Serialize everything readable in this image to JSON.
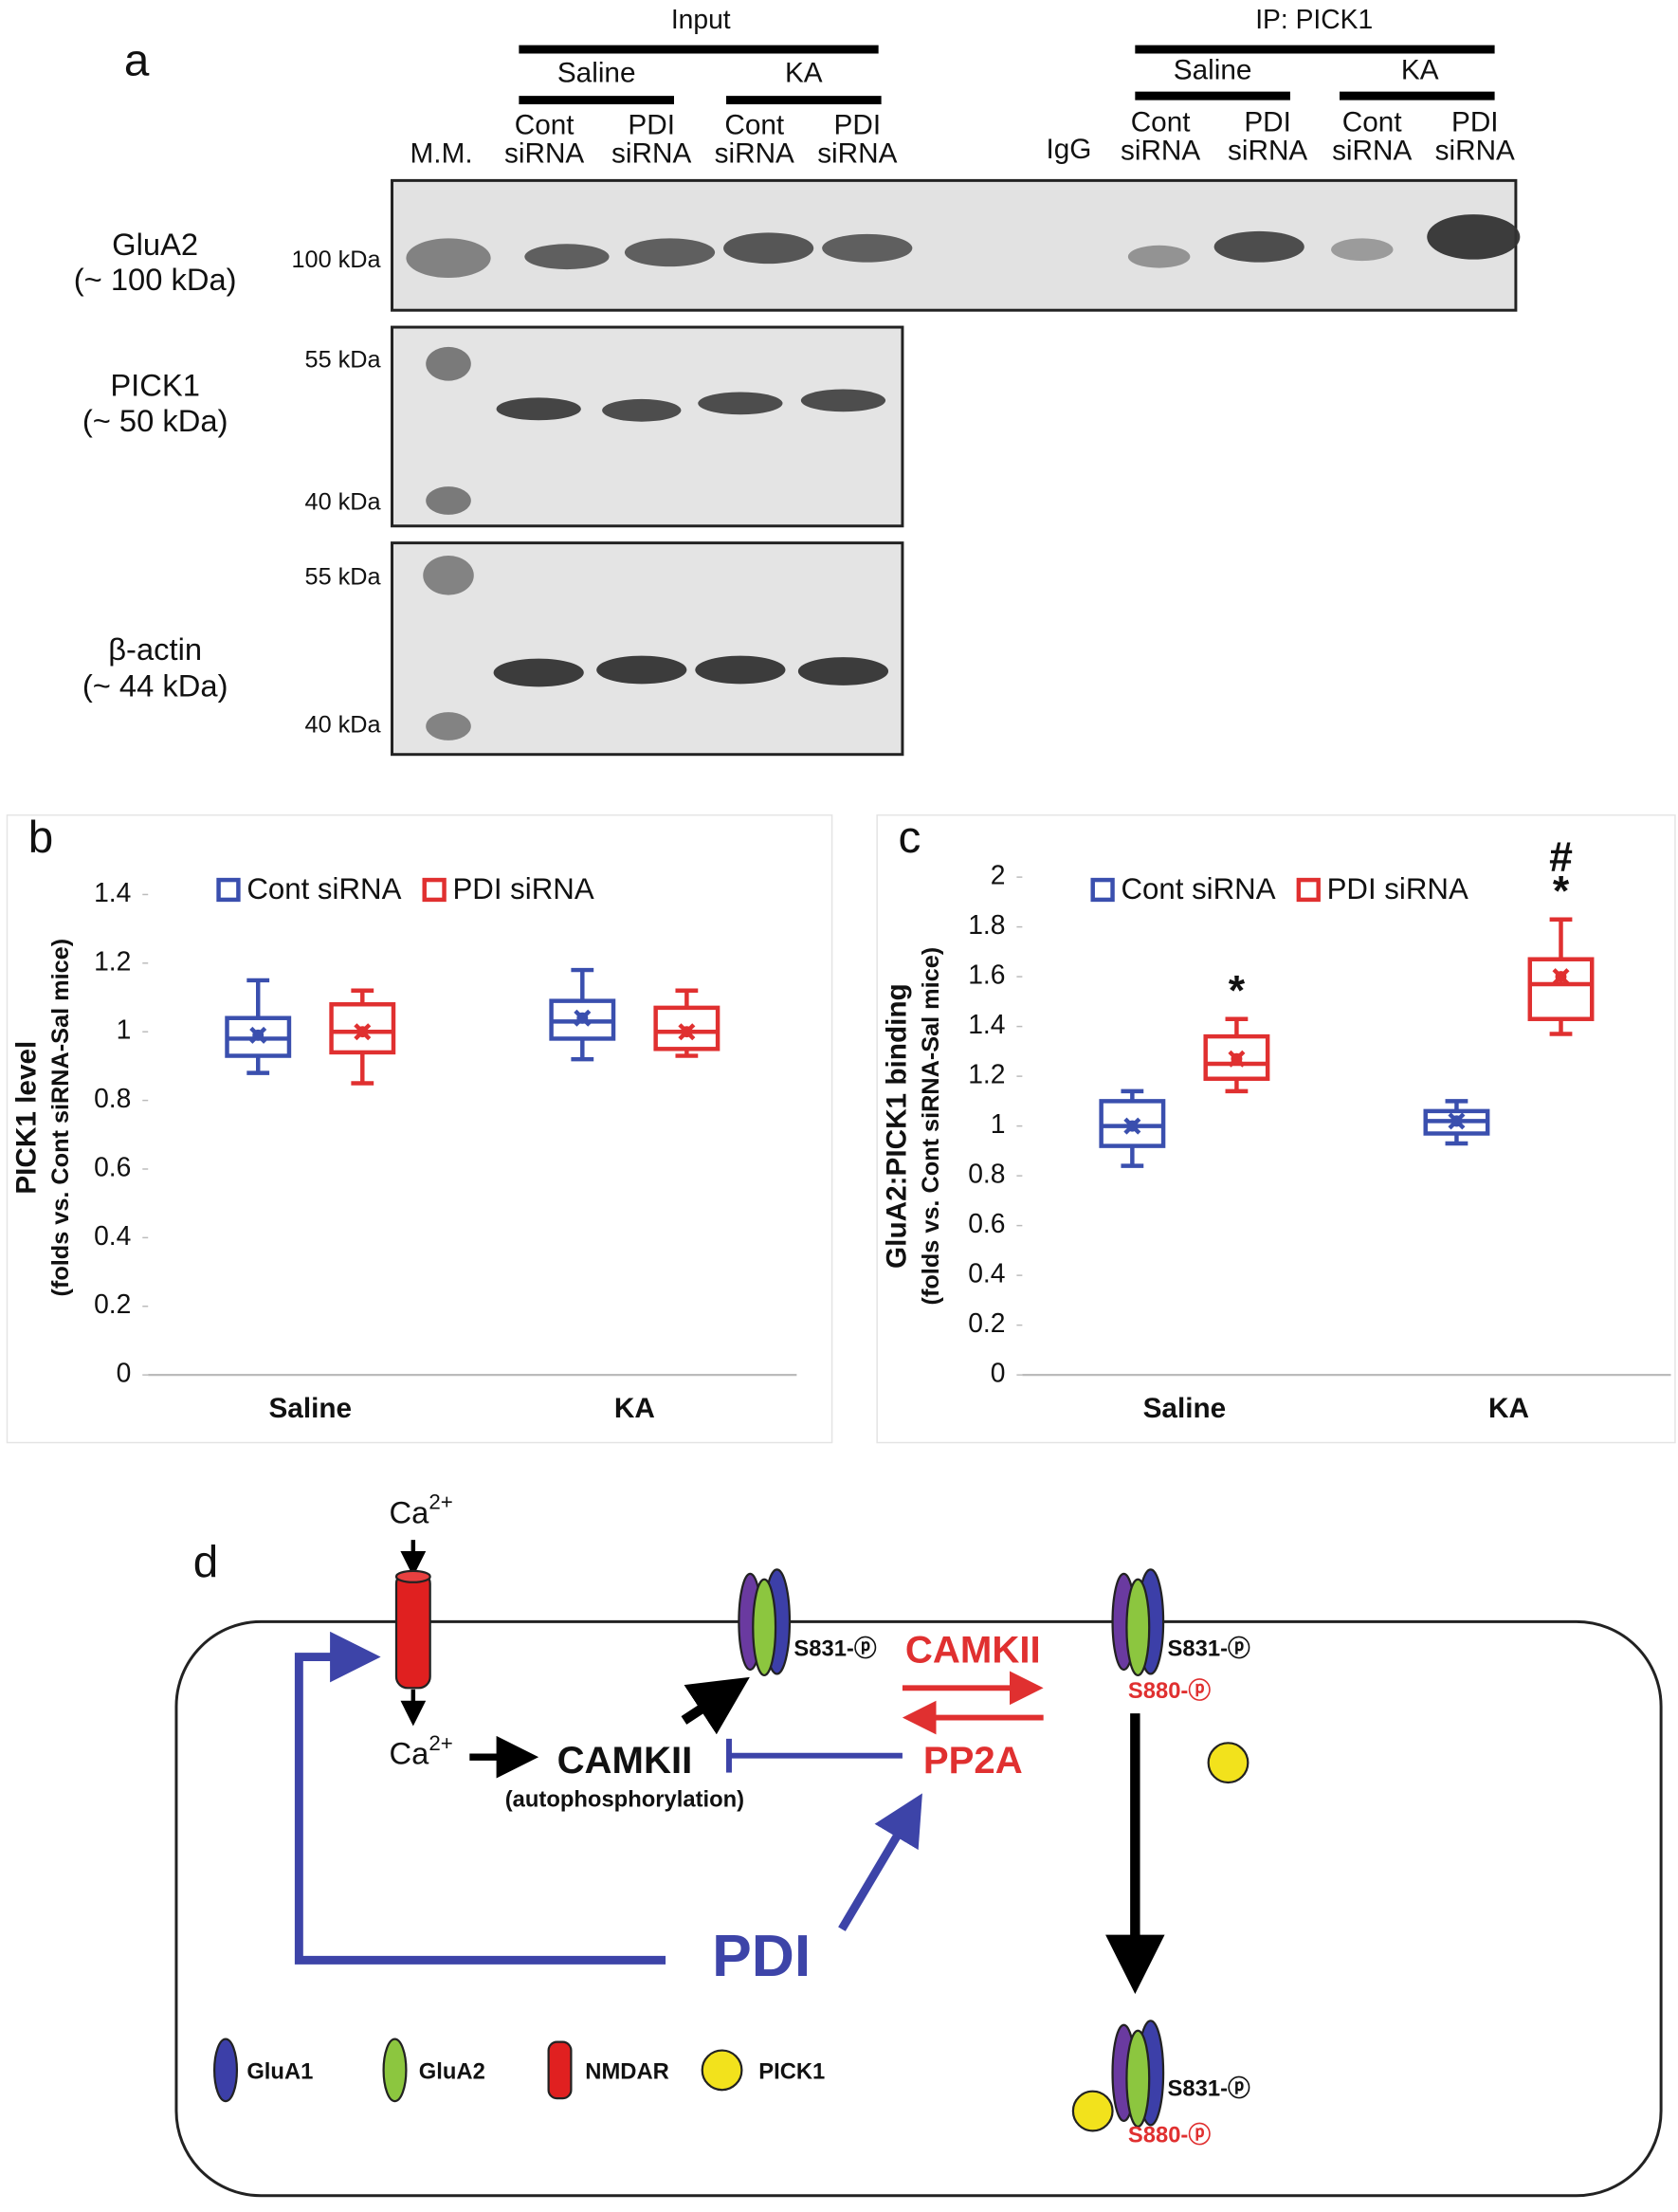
{
  "figure": {
    "panel_a": {
      "letter": "a",
      "input_header": "Input",
      "ip_header": "IP: PICK1",
      "input_groups": [
        "Saline",
        "KA"
      ],
      "ip_groups": [
        "Saline",
        "KA"
      ],
      "marker_lane": "M.M.",
      "igg_lane": "IgG",
      "input_lanes": [
        [
          "Cont",
          "siRNA"
        ],
        [
          "PDI",
          "siRNA"
        ],
        [
          "Cont",
          "siRNA"
        ],
        [
          "PDI",
          "siRNA"
        ]
      ],
      "ip_lanes": [
        [
          "Cont",
          "siRNA"
        ],
        [
          "PDI",
          "siRNA"
        ],
        [
          "Cont",
          "siRNA"
        ],
        [
          "PDI",
          "siRNA"
        ]
      ],
      "blots": [
        {
          "protein": "GluA2",
          "size": "(~ 100 kDa)",
          "markers": [
            "100 kDa"
          ]
        },
        {
          "protein": "PICK1",
          "size": "(~ 50 kDa)",
          "markers": [
            "55 kDa",
            "40 kDa"
          ]
        },
        {
          "protein": "β-actin",
          "size": "(~ 44 kDa)",
          "markers": [
            "55 kDa",
            "40 kDa"
          ]
        }
      ]
    },
    "panel_d": {
      "letter": "d",
      "ca_top": {
        "base": "Ca",
        "charge": "2+"
      },
      "ca_bottom": {
        "base": "Ca",
        "charge": "2+"
      },
      "camkii_auto": "CAMKII",
      "autophosphorylation": "(autophosphorylation)",
      "camkii_forward": "CAMKII",
      "pp2a": "PP2A",
      "pdi": "PDI",
      "site_labels": [
        "S831-ⓟ",
        "S831-ⓟ",
        "S880-ⓟ",
        "S831-ⓟ",
        "S880-ⓟ"
      ],
      "legend": [
        "GluA1",
        "GluA2",
        "NMDAR",
        "PICK1"
      ]
    }
  },
  "chart_data": [
    {
      "type": "box",
      "panel": "b",
      "y_label": "PICK1 level",
      "y_sublabel": "(folds vs. Cont siRNA-Sal mice)",
      "categories": [
        "Saline",
        "KA"
      ],
      "ylim": [
        0,
        1.5
      ],
      "yticks": [
        0,
        0.2,
        0.4,
        0.6,
        0.8,
        1,
        1.2,
        1.4
      ],
      "legend": "top-left",
      "series": [
        {
          "name": "Cont siRNA",
          "color": "#3a4fae",
          "min": [
            0.88,
            0.92
          ],
          "q1": [
            0.93,
            0.98
          ],
          "median": [
            0.98,
            1.03
          ],
          "q3": [
            1.04,
            1.09
          ],
          "max": [
            1.15,
            1.18
          ],
          "mean": [
            0.99,
            1.04
          ]
        },
        {
          "name": "PDI siRNA",
          "color": "#e03030",
          "min": [
            0.85,
            0.93
          ],
          "q1": [
            0.94,
            0.95
          ],
          "median": [
            1.0,
            1.0
          ],
          "q3": [
            1.08,
            1.07
          ],
          "max": [
            1.12,
            1.12
          ],
          "mean": [
            1.0,
            1.0
          ]
        }
      ]
    },
    {
      "type": "box",
      "panel": "c",
      "y_label": "GluA2:PICK1 binding",
      "y_sublabel": "(folds vs. Cont siRNA-Sal mice)",
      "categories": [
        "Saline",
        "KA"
      ],
      "ylim": [
        0,
        2
      ],
      "yticks": [
        0,
        0.2,
        0.4,
        0.6,
        0.8,
        1,
        1.2,
        1.4,
        1.6,
        1.8,
        2
      ],
      "legend": "top-left",
      "series": [
        {
          "name": "Cont siRNA",
          "color": "#3a4fae",
          "min": [
            0.84,
            0.93
          ],
          "q1": [
            0.92,
            0.97
          ],
          "median": [
            1.0,
            1.02
          ],
          "q3": [
            1.1,
            1.06
          ],
          "max": [
            1.14,
            1.1
          ],
          "mean": [
            1.0,
            1.02
          ]
        },
        {
          "name": "PDI siRNA",
          "color": "#e03030",
          "min": [
            1.14,
            1.37
          ],
          "q1": [
            1.19,
            1.43
          ],
          "median": [
            1.25,
            1.57
          ],
          "q3": [
            1.36,
            1.67
          ],
          "max": [
            1.43,
            1.83
          ],
          "mean": [
            1.27,
            1.6
          ]
        }
      ],
      "annotations": [
        {
          "text": "*",
          "category": 0,
          "series": 1
        },
        {
          "text": "*",
          "category": 1,
          "series": 1
        },
        {
          "text": "#",
          "category": 1,
          "series": 1
        }
      ]
    }
  ]
}
